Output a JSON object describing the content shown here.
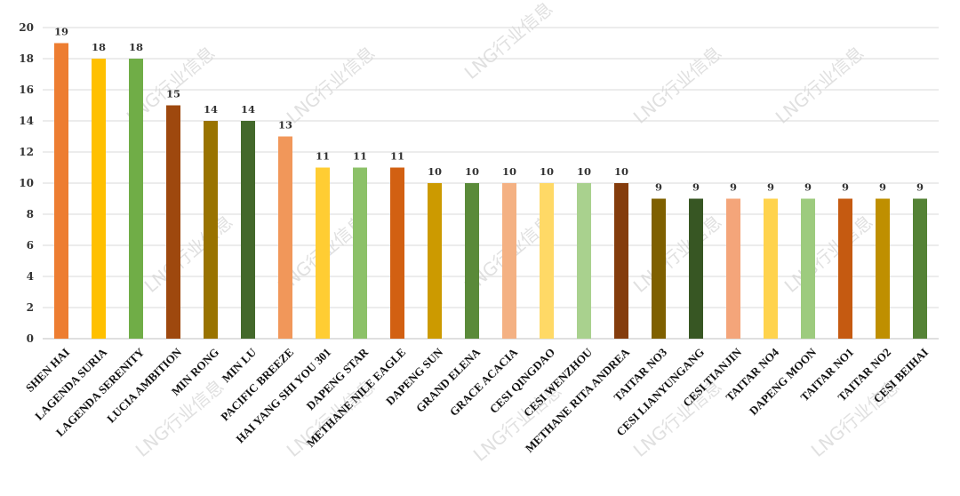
{
  "chart_data": {
    "type": "bar",
    "title": "",
    "xlabel": "",
    "ylabel": "",
    "ylim": [
      0,
      20
    ],
    "yticks": [
      0,
      2,
      4,
      6,
      8,
      10,
      12,
      14,
      16,
      18,
      20
    ],
    "grid": true,
    "legend": "none",
    "categories": [
      "SHEN HAI",
      "LAGENDA SURIA",
      "LAGENDA SERENITY",
      "LUCIA AMBITION",
      "MIN RONG",
      "MIN LU",
      "PACIFIC BREEZE",
      "HAI YANG SHI YOU 301",
      "DAPENG STAR",
      "METHANE NILE EAGLE",
      "DAPENG SUN",
      "GRAND ELENA",
      "GRACE ACACIA",
      "CESI QINGDAO",
      "CESI WENZHOU",
      "METHANE RITA ANDREA",
      "TAITAR NO3",
      "CESI LIANYUNGANG",
      "CESI TIANJIN",
      "TAITAR NO4",
      "DAPENG MOON",
      "TAITAR NO1",
      "TAITAR NO2",
      "CESI BEIHAI"
    ],
    "values": [
      19,
      18,
      18,
      15,
      14,
      14,
      13,
      11,
      11,
      11,
      10,
      10,
      10,
      10,
      10,
      10,
      9,
      9,
      9,
      9,
      9,
      9,
      9,
      9
    ],
    "colors": [
      "#ED7D31",
      "#FFC000",
      "#70AD47",
      "#9E480E",
      "#997300",
      "#43682B",
      "#F1975A",
      "#FFCD33",
      "#8CC168",
      "#D26012",
      "#CC9A00",
      "#5A8A39",
      "#F4B183",
      "#FFD966",
      "#A9D18E",
      "#843C0C",
      "#7F6000",
      "#375623",
      "#F4A57A",
      "#FFD34D",
      "#9DCB7E",
      "#C55A11",
      "#BF8F00",
      "#548235"
    ]
  },
  "watermark": {
    "text": "LNG行业信息",
    "color": "#c8c8c8"
  }
}
